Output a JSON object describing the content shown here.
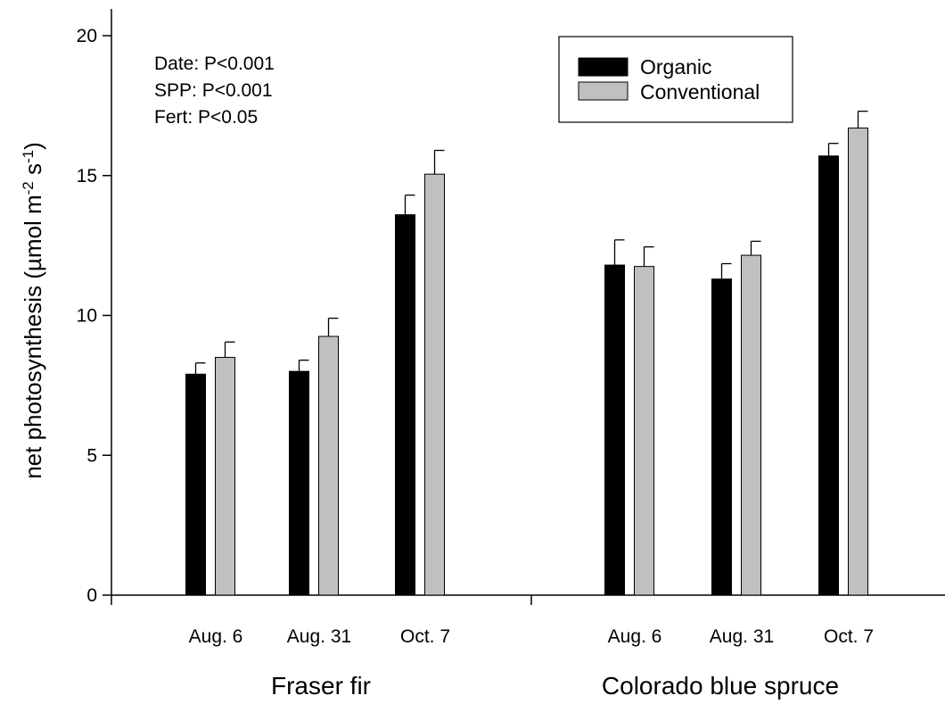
{
  "chart_data": {
    "type": "bar",
    "ylabel": "net photosynthesis (µmol m-2 s-1)",
    "ylim": [
      0,
      20
    ],
    "yticks": [
      "0",
      "5",
      "10",
      "15",
      "20"
    ],
    "annotations": [
      "Date: P<0.001",
      "SPP: P<0.001",
      "Fert: P<0.05"
    ],
    "legend": {
      "placement": "top-right",
      "entries": [
        "Organic",
        "Conventional"
      ]
    },
    "groups": [
      {
        "label": "Fraser fir",
        "categories": [
          "Aug. 6",
          "Aug. 31",
          "Oct. 7"
        ]
      },
      {
        "label": "Colorado blue spruce",
        "categories": [
          "Aug. 6",
          "Aug. 31",
          "Oct. 7"
        ]
      }
    ],
    "series": [
      {
        "name": "Organic",
        "color": "#000000",
        "values": [
          7.9,
          8.0,
          13.6,
          11.8,
          11.3,
          15.7
        ],
        "errors": [
          0.4,
          0.4,
          0.7,
          0.9,
          0.55,
          0.45
        ]
      },
      {
        "name": "Conventional",
        "color": "#c0c0c0",
        "values": [
          8.5,
          9.25,
          15.05,
          11.75,
          12.15,
          16.7
        ],
        "errors": [
          0.55,
          0.65,
          0.85,
          0.7,
          0.5,
          0.6
        ]
      }
    ]
  }
}
